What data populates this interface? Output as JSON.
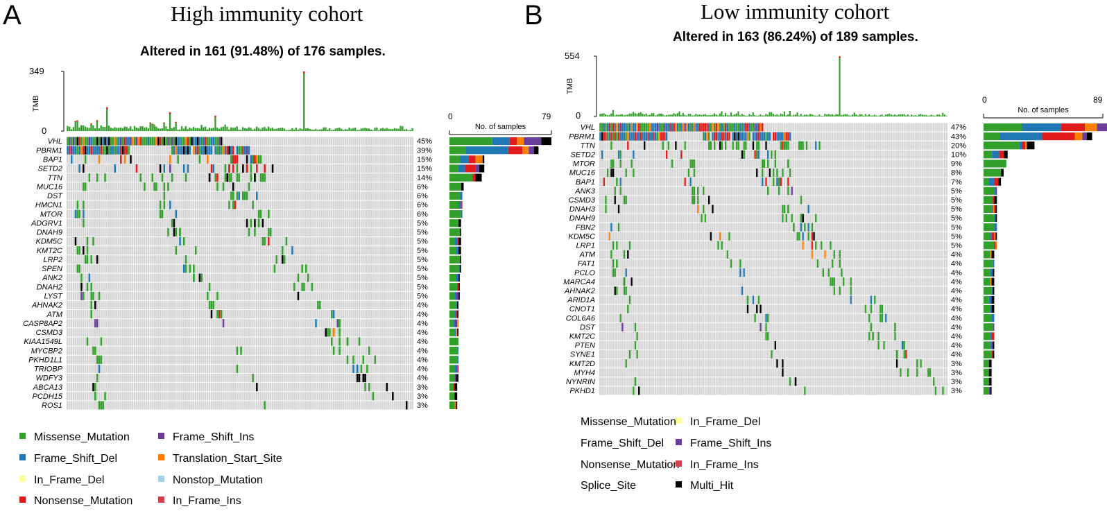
{
  "panels": {
    "a": {
      "letter": "A",
      "title": "High immunity cohort",
      "altered": "Altered in 161 (91.48%) of 176 samples.",
      "tmb_label": "TMB",
      "tmb_max_label": "349",
      "tmb_min_label": "0",
      "count_min_label": "0",
      "count_max_label": "79",
      "count_title": "No. of samples"
    },
    "b": {
      "letter": "B",
      "title": "Low immunity cohort",
      "altered": "Altered in 163 (86.24%) of 189 samples.",
      "tmb_label": "TMB",
      "tmb_max_label": "554",
      "tmb_min_label": "0",
      "count_min_label": "0",
      "count_max_label": "89",
      "count_title": "No. of samples"
    }
  },
  "colors": {
    "Missense_Mutation": "#33A02C",
    "Frame_Shift_Del": "#1F78B4",
    "In_Frame_Del": "#FFFF99",
    "Nonsense_Mutation": "#E31A1C",
    "Frame_Shift_Ins": "#6A3D9A",
    "Translation_Start_Site": "#FF7F00",
    "Nonstop_Mutation": "#A6CEE3",
    "In_Frame_Ins": "#D6404E",
    "Splice_Site": "#FF7F00",
    "Multi_Hit": "#000000",
    "background": "#D3D3D3"
  },
  "legend_a": [
    {
      "label": "Missense_Mutation",
      "key": "Missense_Mutation"
    },
    {
      "label": "Frame_Shift_Del",
      "key": "Frame_Shift_Del"
    },
    {
      "label": "In_Frame_Del",
      "key": "In_Frame_Del"
    },
    {
      "label": "Nonsense_Mutation",
      "key": "Nonsense_Mutation"
    },
    {
      "label": "Frame_Shift_Ins",
      "key": "Frame_Shift_Ins"
    },
    {
      "label": "Translation_Start_Site",
      "key": "Translation_Start_Site"
    },
    {
      "label": "Nonstop_Mutation",
      "key": "Nonstop_Mutation"
    },
    {
      "label": "In_Frame_Ins",
      "key": "In_Frame_Ins"
    }
  ],
  "legend_b": [
    {
      "label": "Missense_Mutation",
      "key": "Missense_Mutation"
    },
    {
      "label": "Frame_Shift_Del",
      "key": "Frame_Shift_Del"
    },
    {
      "label": "Nonsense_Mutation",
      "key": "Nonsense_Mutation"
    },
    {
      "label": "Splice_Site",
      "key": "Splice_Site"
    },
    {
      "label": "In_Frame_Del",
      "key": "In_Frame_Del"
    },
    {
      "label": "Frame_Shift_Ins",
      "key": "Frame_Shift_Ins"
    },
    {
      "label": "In_Frame_Ins",
      "key": "In_Frame_Ins"
    },
    {
      "label": "Multi_Hit",
      "key": "Multi_Hit"
    }
  ],
  "chart_data": [
    {
      "type": "oncoplot",
      "title": "High immunity cohort",
      "subtitle": "Altered in 161 (91.48%) of 176 samples.",
      "n_samples": 176,
      "tmb_range": [
        0,
        349
      ],
      "count_range": [
        0,
        79
      ],
      "genes": [
        {
          "gene": "VHL",
          "pct": "45%",
          "count": 79,
          "mix": {
            "Missense_Mutation": 0.42,
            "Frame_Shift_Del": 0.17,
            "Nonsense_Mutation": 0.07,
            "Translation_Start_Site": 0.07,
            "Frame_Shift_Ins": 0.17,
            "Multi_Hit": 0.1
          }
        },
        {
          "gene": "PBRM1",
          "pct": "39%",
          "count": 69,
          "mix": {
            "Missense_Mutation": 0.18,
            "Frame_Shift_Del": 0.48,
            "Nonsense_Mutation": 0.16,
            "Translation_Start_Site": 0.07,
            "Frame_Shift_Ins": 0.06,
            "Multi_Hit": 0.05
          }
        },
        {
          "gene": "BAP1",
          "pct": "15%",
          "count": 27,
          "mix": {
            "Missense_Mutation": 0.3,
            "Frame_Shift_Del": 0.25,
            "Nonsense_Mutation": 0.2,
            "Translation_Start_Site": 0.2,
            "Multi_Hit": 0.05
          }
        },
        {
          "gene": "SETD2",
          "pct": "15%",
          "count": 27,
          "mix": {
            "Missense_Mutation": 0.25,
            "Frame_Shift_Del": 0.2,
            "Nonsense_Mutation": 0.3,
            "Frame_Shift_Ins": 0.1,
            "Multi_Hit": 0.15
          }
        },
        {
          "gene": "TTN",
          "pct": "14%",
          "count": 25,
          "mix": {
            "Missense_Mutation": 0.72,
            "Nonsense_Mutation": 0.08,
            "Multi_Hit": 0.2
          }
        },
        {
          "gene": "MUC16",
          "pct": "6%",
          "count": 11,
          "mix": {
            "Missense_Mutation": 0.82,
            "Multi_Hit": 0.18
          }
        },
        {
          "gene": "DST",
          "pct": "6%",
          "count": 10,
          "mix": {
            "Missense_Mutation": 0.8,
            "Frame_Shift_Del": 0.2
          }
        },
        {
          "gene": "HMCN1",
          "pct": "6%",
          "count": 10,
          "mix": {
            "Missense_Mutation": 0.7,
            "Frame_Shift_Del": 0.2,
            "Nonsense_Mutation": 0.1
          }
        },
        {
          "gene": "MTOR",
          "pct": "6%",
          "count": 10,
          "mix": {
            "Missense_Mutation": 0.9,
            "Frame_Shift_Del": 0.1
          }
        },
        {
          "gene": "ADGRV1",
          "pct": "5%",
          "count": 9,
          "mix": {
            "Missense_Mutation": 0.78,
            "Multi_Hit": 0.22
          }
        },
        {
          "gene": "DNAH9",
          "pct": "5%",
          "count": 9,
          "mix": {
            "Missense_Mutation": 0.89,
            "Multi_Hit": 0.11
          }
        },
        {
          "gene": "KDM5C",
          "pct": "5%",
          "count": 9,
          "mix": {
            "Missense_Mutation": 0.45,
            "Frame_Shift_Del": 0.22,
            "Nonsense_Mutation": 0.11,
            "Multi_Hit": 0.22
          }
        },
        {
          "gene": "KMT2C",
          "pct": "5%",
          "count": 9,
          "mix": {
            "Missense_Mutation": 0.56,
            "Frame_Shift_Del": 0.22,
            "Multi_Hit": 0.22
          }
        },
        {
          "gene": "LRP2",
          "pct": "5%",
          "count": 9,
          "mix": {
            "Missense_Mutation": 0.89,
            "Multi_Hit": 0.11
          }
        },
        {
          "gene": "SPEN",
          "pct": "5%",
          "count": 9,
          "mix": {
            "Missense_Mutation": 0.78,
            "Frame_Shift_Del": 0.11,
            "Multi_Hit": 0.11
          }
        },
        {
          "gene": "ANK2",
          "pct": "5%",
          "count": 8,
          "mix": {
            "Missense_Mutation": 0.63,
            "Frame_Shift_Del": 0.25,
            "Multi_Hit": 0.12
          }
        },
        {
          "gene": "DNAH2",
          "pct": "5%",
          "count": 8,
          "mix": {
            "Missense_Mutation": 0.75,
            "Nonsense_Mutation": 0.13,
            "Multi_Hit": 0.12
          }
        },
        {
          "gene": "LYST",
          "pct": "5%",
          "count": 8,
          "mix": {
            "Missense_Mutation": 0.5,
            "Frame_Shift_Del": 0.13,
            "Frame_Shift_Ins": 0.25,
            "Multi_Hit": 0.12
          }
        },
        {
          "gene": "AHNAK2",
          "pct": "4%",
          "count": 7,
          "mix": {
            "Missense_Mutation": 0.71,
            "Frame_Shift_Del": 0.14,
            "Multi_Hit": 0.15
          }
        },
        {
          "gene": "ATM",
          "pct": "4%",
          "count": 7,
          "mix": {
            "Missense_Mutation": 0.57,
            "Frame_Shift_Del": 0.14,
            "Nonsense_Mutation": 0.15,
            "Multi_Hit": 0.14
          }
        },
        {
          "gene": "CASP8AP2",
          "pct": "4%",
          "count": 7,
          "mix": {
            "Missense_Mutation": 0.43,
            "Frame_Shift_Del": 0.14,
            "Frame_Shift_Ins": 0.29,
            "Translation_Start_Site": 0.14
          }
        },
        {
          "gene": "CSMD3",
          "pct": "4%",
          "count": 7,
          "mix": {
            "Missense_Mutation": 0.57,
            "Frame_Shift_Del": 0.14,
            "Translation_Start_Site": 0.15,
            "Multi_Hit": 0.14
          }
        },
        {
          "gene": "KIAA1549L",
          "pct": "4%",
          "count": 7,
          "mix": {
            "Missense_Mutation": 1.0
          }
        },
        {
          "gene": "MYCBP2",
          "pct": "4%",
          "count": 7,
          "mix": {
            "Missense_Mutation": 0.86,
            "Frame_Shift_Del": 0.14
          }
        },
        {
          "gene": "PKHD1L1",
          "pct": "4%",
          "count": 7,
          "mix": {
            "Missense_Mutation": 0.86,
            "Frame_Shift_Del": 0.14
          }
        },
        {
          "gene": "TRIOBP",
          "pct": "4%",
          "count": 7,
          "mix": {
            "Missense_Mutation": 0.57,
            "Frame_Shift_Del": 0.29,
            "Nonsense_Mutation": 0.14
          }
        },
        {
          "gene": "WDFY3",
          "pct": "4%",
          "count": 7,
          "mix": {
            "Missense_Mutation": 0.57,
            "Frame_Shift_Ins": 0.14,
            "Multi_Hit": 0.29
          }
        },
        {
          "gene": "ABCA13",
          "pct": "3%",
          "count": 6,
          "mix": {
            "Missense_Mutation": 0.5,
            "Nonsense_Mutation": 0.17,
            "Multi_Hit": 0.33
          }
        },
        {
          "gene": "PCDH15",
          "pct": "3%",
          "count": 6,
          "mix": {
            "Missense_Mutation": 0.67,
            "Multi_Hit": 0.33
          }
        },
        {
          "gene": "ROS1",
          "pct": "3%",
          "count": 6,
          "mix": {
            "Missense_Mutation": 0.67,
            "Translation_Start_Site": 0.16,
            "Multi_Hit": 0.17
          }
        }
      ],
      "tmb_peaks": [
        {
          "sample": 20,
          "tmb": 140
        },
        {
          "sample": 52,
          "tmb": 110
        },
        {
          "sample": 120,
          "tmb": 349
        },
        {
          "sample": 75,
          "tmb": 90
        }
      ]
    },
    {
      "type": "oncoplot",
      "title": "Low immunity cohort",
      "subtitle": "Altered in 163 (86.24%) of 189 samples.",
      "n_samples": 189,
      "tmb_range": [
        0,
        554
      ],
      "count_range": [
        0,
        89
      ],
      "genes": [
        {
          "gene": "VHL",
          "pct": "47%",
          "count": 89,
          "mix": {
            "Missense_Mutation": 0.32,
            "Frame_Shift_Del": 0.33,
            "Nonsense_Mutation": 0.2,
            "Splice_Site": 0.1,
            "Frame_Shift_Ins": 0.1,
            "Multi_Hit": 0.05
          }
        },
        {
          "gene": "PBRM1",
          "pct": "43%",
          "count": 81,
          "mix": {
            "Missense_Mutation": 0.15,
            "Frame_Shift_Del": 0.39,
            "Nonsense_Mutation": 0.3,
            "Splice_Site": 0.07,
            "Frame_Shift_Ins": 0.04,
            "Multi_Hit": 0.05
          }
        },
        {
          "gene": "TTN",
          "pct": "20%",
          "count": 38,
          "mix": {
            "Missense_Mutation": 0.7,
            "Frame_Shift_Del": 0.05,
            "Nonsense_Mutation": 0.07,
            "Splice_Site": 0.03,
            "Multi_Hit": 0.15
          }
        },
        {
          "gene": "SETD2",
          "pct": "10%",
          "count": 18,
          "mix": {
            "Missense_Mutation": 0.35,
            "Frame_Shift_Del": 0.3,
            "Nonsense_Mutation": 0.2,
            "Multi_Hit": 0.15
          }
        },
        {
          "gene": "MTOR",
          "pct": "9%",
          "count": 17,
          "mix": {
            "Missense_Mutation": 1.0
          }
        },
        {
          "gene": "MUC16",
          "pct": "8%",
          "count": 15,
          "mix": {
            "Missense_Mutation": 0.87,
            "Multi_Hit": 0.13
          }
        },
        {
          "gene": "BAP1",
          "pct": "7%",
          "count": 13,
          "mix": {
            "Missense_Mutation": 0.3,
            "Frame_Shift_Del": 0.3,
            "Nonsense_Mutation": 0.25,
            "Multi_Hit": 0.15
          }
        },
        {
          "gene": "ANK3",
          "pct": "5%",
          "count": 10,
          "mix": {
            "Missense_Mutation": 0.8,
            "Frame_Shift_Del": 0.1,
            "Frame_Shift_Ins": 0.1
          }
        },
        {
          "gene": "CSMD3",
          "pct": "5%",
          "count": 10,
          "mix": {
            "Missense_Mutation": 0.7,
            "Nonsense_Mutation": 0.1,
            "Multi_Hit": 0.2
          }
        },
        {
          "gene": "DNAH3",
          "pct": "5%",
          "count": 10,
          "mix": {
            "Missense_Mutation": 0.6,
            "Frame_Shift_Del": 0.1,
            "Splice_Site": 0.1,
            "Nonsense_Mutation": 0.1,
            "Multi_Hit": 0.1
          }
        },
        {
          "gene": "DNAH9",
          "pct": "5%",
          "count": 10,
          "mix": {
            "Missense_Mutation": 0.8,
            "Frame_Shift_Del": 0.1,
            "Multi_Hit": 0.1
          }
        },
        {
          "gene": "FBN2",
          "pct": "5%",
          "count": 10,
          "mix": {
            "Missense_Mutation": 0.8,
            "Frame_Shift_Del": 0.2
          }
        },
        {
          "gene": "KDM5C",
          "pct": "5%",
          "count": 10,
          "mix": {
            "Missense_Mutation": 0.5,
            "Frame_Shift_Del": 0.1,
            "Nonsense_Mutation": 0.2,
            "Splice_Site": 0.1,
            "Multi_Hit": 0.1
          }
        },
        {
          "gene": "LRP1",
          "pct": "5%",
          "count": 10,
          "mix": {
            "Missense_Mutation": 0.8,
            "Nonsense_Mutation": 0.1,
            "Splice_Site": 0.1
          }
        },
        {
          "gene": "ATM",
          "pct": "4%",
          "count": 8,
          "mix": {
            "Missense_Mutation": 0.62,
            "Splice_Site": 0.13,
            "Multi_Hit": 0.25
          }
        },
        {
          "gene": "FAT1",
          "pct": "4%",
          "count": 8,
          "mix": {
            "Missense_Mutation": 0.88,
            "Frame_Shift_Del": 0.12
          }
        },
        {
          "gene": "PCLO",
          "pct": "4%",
          "count": 8,
          "mix": {
            "Missense_Mutation": 0.62,
            "Frame_Shift_Del": 0.25,
            "Multi_Hit": 0.13
          }
        },
        {
          "gene": "MARCA4",
          "pct": "4%",
          "count": 8,
          "mix": {
            "Missense_Mutation": 0.62,
            "Splice_Site": 0.13,
            "Multi_Hit": 0.25
          }
        },
        {
          "gene": "AHNAK2",
          "pct": "4%",
          "count": 8,
          "mix": {
            "Missense_Mutation": 0.75,
            "Frame_Shift_Del": 0.12,
            "Multi_Hit": 0.13
          }
        },
        {
          "gene": "ARID1A",
          "pct": "4%",
          "count": 8,
          "mix": {
            "Missense_Mutation": 0.5,
            "Frame_Shift_Del": 0.25,
            "Multi_Hit": 0.25
          }
        },
        {
          "gene": "CNOT1",
          "pct": "4%",
          "count": 8,
          "mix": {
            "Missense_Mutation": 0.62,
            "Frame_Shift_Del": 0.13,
            "Multi_Hit": 0.25
          }
        },
        {
          "gene": "COL6A6",
          "pct": "4%",
          "count": 8,
          "mix": {
            "Missense_Mutation": 0.75,
            "Frame_Shift_Del": 0.25
          }
        },
        {
          "gene": "DST",
          "pct": "4%",
          "count": 8,
          "mix": {
            "Missense_Mutation": 0.88,
            "Frame_Shift_Ins": 0.12
          }
        },
        {
          "gene": "KMT2C",
          "pct": "4%",
          "count": 8,
          "mix": {
            "Missense_Mutation": 0.62,
            "Frame_Shift_Del": 0.13,
            "Nonsense_Mutation": 0.25
          }
        },
        {
          "gene": "PTEN",
          "pct": "4%",
          "count": 8,
          "mix": {
            "Missense_Mutation": 0.62,
            "Frame_Shift_Del": 0.13,
            "Frame_Shift_Ins": 0.12,
            "Multi_Hit": 0.13
          }
        },
        {
          "gene": "SYNE1",
          "pct": "4%",
          "count": 8,
          "mix": {
            "Missense_Mutation": 0.75,
            "Nonsense_Mutation": 0.12,
            "Multi_Hit": 0.13
          }
        },
        {
          "gene": "KMT2D",
          "pct": "3%",
          "count": 6,
          "mix": {
            "Missense_Mutation": 0.67,
            "Multi_Hit": 0.33
          }
        },
        {
          "gene": "MYH4",
          "pct": "3%",
          "count": 6,
          "mix": {
            "Missense_Mutation": 0.67,
            "Multi_Hit": 0.33
          }
        },
        {
          "gene": "NYNRIN",
          "pct": "3%",
          "count": 6,
          "mix": {
            "Missense_Mutation": 0.67,
            "Multi_Hit": 0.33
          }
        },
        {
          "gene": "PKHD1",
          "pct": "3%",
          "count": 6,
          "mix": {
            "Missense_Mutation": 0.67,
            "Frame_Shift_Ins": 0.16,
            "Multi_Hit": 0.17
          }
        }
      ],
      "tmb_peaks": [
        {
          "sample": 130,
          "tmb": 554
        },
        {
          "sample": 7,
          "tmb": 60
        },
        {
          "sample": 100,
          "tmb": 45
        }
      ]
    }
  ]
}
